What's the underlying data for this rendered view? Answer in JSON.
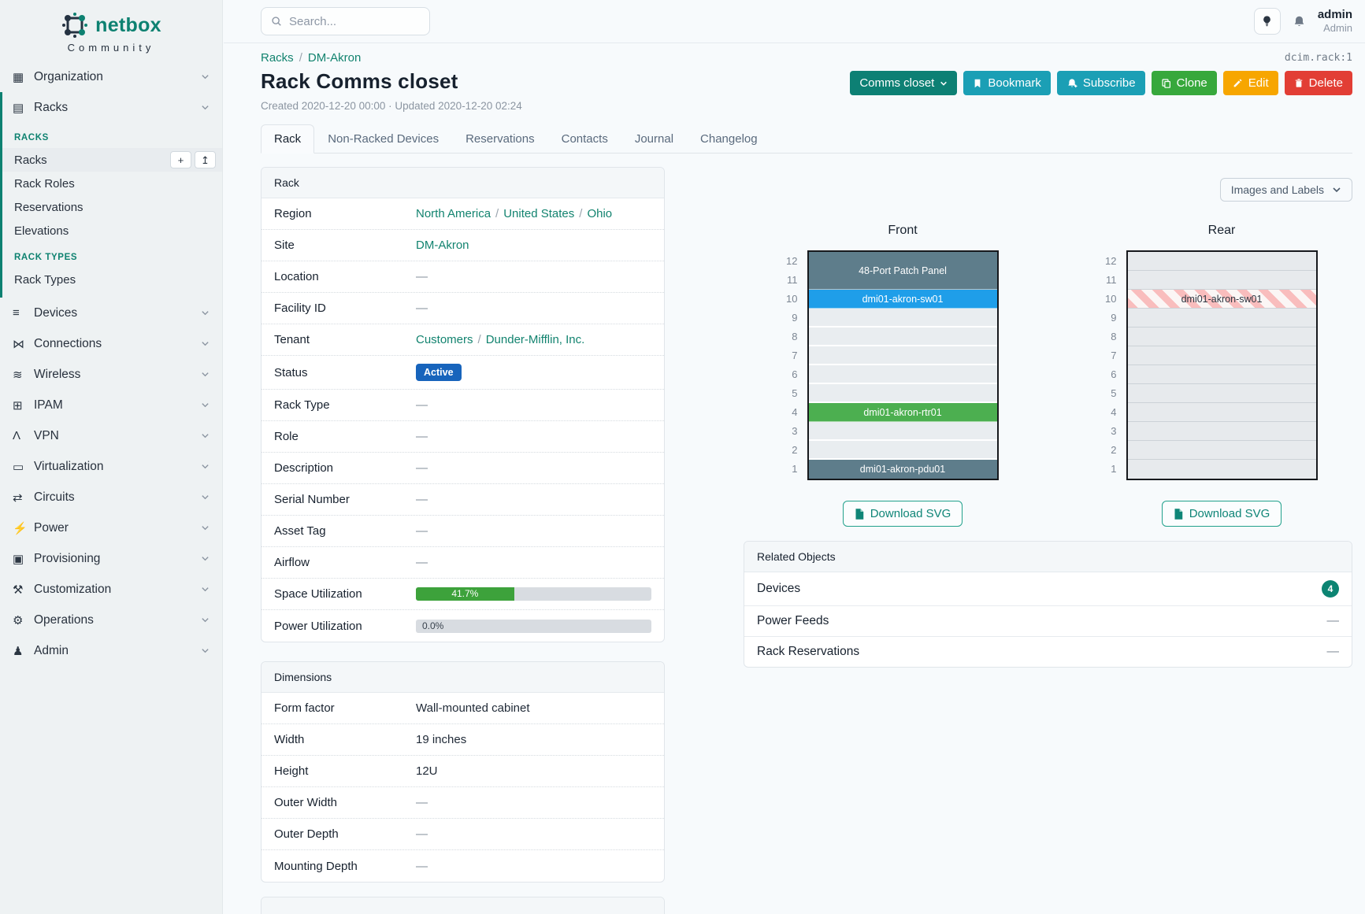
{
  "brand": {
    "name": "netbox",
    "subtitle": "Community"
  },
  "topbar": {
    "search_placeholder": "Search...",
    "user_name": "admin",
    "user_role": "Admin"
  },
  "breadcrumb": {
    "items": [
      "Racks",
      "DM-Akron"
    ],
    "separator": "/"
  },
  "object_ref": "dcim.rack:1",
  "page": {
    "title": "Rack Comms closet",
    "meta": "Created 2020-12-20 00:00 · Updated 2020-12-20 02:24"
  },
  "actions": {
    "comms": "Comms closet",
    "bookmark": "Bookmark",
    "subscribe": "Subscribe",
    "clone": "Clone",
    "edit": "Edit",
    "delete": "Delete"
  },
  "tabs": [
    {
      "label": "Rack",
      "active": true
    },
    {
      "label": "Non-Racked Devices"
    },
    {
      "label": "Reservations"
    },
    {
      "label": "Contacts"
    },
    {
      "label": "Journal"
    },
    {
      "label": "Changelog"
    }
  ],
  "ui": {
    "dash": "—",
    "link_separator": "/"
  },
  "colors": {
    "accent_teal": "#0d8171",
    "link_teal": "#12836f",
    "cyan_button": "#1b9fb5",
    "green_button": "#37a83c",
    "orange_button": "#f7a600",
    "red_button": "#e23e35",
    "status_active": "#1764bc",
    "progress_green": "#3da23b",
    "count_badge": "#0c8472",
    "device_slate": "#5e7d8b",
    "device_blue": "#1f9ee9",
    "device_green": "#4caf50",
    "hatch_pink": "#f9bdbd"
  },
  "sidebar": {
    "top_items": [
      {
        "label": "Organization",
        "icon": "organization"
      },
      {
        "label": "Racks",
        "icon": "racks"
      }
    ],
    "groups": [
      {
        "heading": "RACKS",
        "items": [
          {
            "label": "Racks",
            "active": true,
            "actions": [
              "add",
              "import"
            ]
          },
          {
            "label": "Rack Roles"
          },
          {
            "label": "Reservations"
          },
          {
            "label": "Elevations"
          }
        ]
      },
      {
        "heading": "RACK TYPES",
        "items": [
          {
            "label": "Rack Types"
          }
        ]
      }
    ],
    "bottom_items": [
      {
        "label": "Devices",
        "icon": "devices"
      },
      {
        "label": "Connections",
        "icon": "connections"
      },
      {
        "label": "Wireless",
        "icon": "wireless"
      },
      {
        "label": "IPAM",
        "icon": "ipam"
      },
      {
        "label": "VPN",
        "icon": "vpn"
      },
      {
        "label": "Virtualization",
        "icon": "virtualization"
      },
      {
        "label": "Circuits",
        "icon": "circuits"
      },
      {
        "label": "Power",
        "icon": "power"
      },
      {
        "label": "Provisioning",
        "icon": "provisioning"
      },
      {
        "label": "Customization",
        "icon": "customization"
      },
      {
        "label": "Operations",
        "icon": "operations"
      },
      {
        "label": "Admin",
        "icon": "admin"
      }
    ]
  },
  "rack_info": {
    "title": "Rack",
    "rows": [
      {
        "label": "Region",
        "type": "links",
        "parts": [
          "North America",
          "United States",
          "Ohio"
        ]
      },
      {
        "label": "Site",
        "type": "links",
        "parts": [
          "DM-Akron"
        ]
      },
      {
        "label": "Location",
        "type": "dash"
      },
      {
        "label": "Facility ID",
        "type": "dash"
      },
      {
        "label": "Tenant",
        "type": "links",
        "parts": [
          "Customers",
          "Dunder-Mifflin, Inc."
        ]
      },
      {
        "label": "Status",
        "type": "badge",
        "text": "Active",
        "color": "#1764bc"
      },
      {
        "label": "Rack Type",
        "type": "dash"
      },
      {
        "label": "Role",
        "type": "dash"
      },
      {
        "label": "Description",
        "type": "dash"
      },
      {
        "label": "Serial Number",
        "type": "dash"
      },
      {
        "label": "Asset Tag",
        "type": "dash"
      },
      {
        "label": "Airflow",
        "type": "dash"
      },
      {
        "label": "Space Utilization",
        "type": "progress",
        "percent": 41.7,
        "text": "41.7%",
        "color": "#3da23b"
      },
      {
        "label": "Power Utilization",
        "type": "progress",
        "percent": 0,
        "text": "0.0%",
        "color": "#3da23b"
      }
    ]
  },
  "dimensions": {
    "title": "Dimensions",
    "rows": [
      {
        "label": "Form factor",
        "type": "text",
        "text": "Wall-mounted cabinet"
      },
      {
        "label": "Width",
        "type": "text",
        "text": "19 inches"
      },
      {
        "label": "Height",
        "type": "text",
        "text": "12U"
      },
      {
        "label": "Outer Width",
        "type": "dash"
      },
      {
        "label": "Outer Depth",
        "type": "dash"
      },
      {
        "label": "Mounting Depth",
        "type": "dash"
      }
    ]
  },
  "related": {
    "title": "Related Objects",
    "rows": [
      {
        "label": "Devices",
        "count": "4"
      },
      {
        "label": "Power Feeds",
        "count": null
      },
      {
        "label": "Rack Reservations",
        "count": null
      }
    ]
  },
  "elevations": {
    "view_toggle": "Images and Labels",
    "download_label": "Download SVG",
    "unit_labels": [
      "12",
      "11",
      "10",
      "9",
      "8",
      "7",
      "6",
      "5",
      "4",
      "3",
      "2",
      "1"
    ],
    "front": {
      "title": "Front",
      "empty_class": "empty-front",
      "units": [
        {
          "u": "12-11",
          "span": 2,
          "label": "48-Port Patch Panel",
          "color": "#5e7d8b"
        },
        {
          "u": "10",
          "label": "dmi01-akron-sw01",
          "color": "#1f9ee9"
        },
        {
          "u": "9"
        },
        {
          "u": "8"
        },
        {
          "u": "7"
        },
        {
          "u": "6"
        },
        {
          "u": "5"
        },
        {
          "u": "4",
          "label": "dmi01-akron-rtr01",
          "color": "#4caf50"
        },
        {
          "u": "3"
        },
        {
          "u": "2"
        },
        {
          "u": "1",
          "label": "dmi01-akron-pdu01",
          "color": "#5e7d8b"
        }
      ]
    },
    "rear": {
      "title": "Rear",
      "empty_class": "empty-rear",
      "units": [
        {
          "u": "12"
        },
        {
          "u": "11"
        },
        {
          "u": "10",
          "label": "dmi01-akron-sw01",
          "hatched": true
        },
        {
          "u": "9"
        },
        {
          "u": "8"
        },
        {
          "u": "7"
        },
        {
          "u": "6"
        },
        {
          "u": "5"
        },
        {
          "u": "4"
        },
        {
          "u": "3"
        },
        {
          "u": "2"
        },
        {
          "u": "1"
        }
      ]
    }
  }
}
